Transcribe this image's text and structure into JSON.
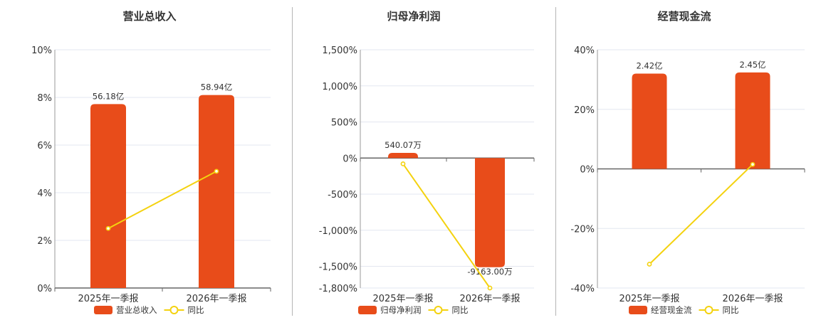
{
  "colors": {
    "bar": "#e84c1a",
    "line": "#f4d20f",
    "grid": "#e3e7f0",
    "axis": "#666666",
    "divider": "#b5b5b5"
  },
  "chart_data": [
    {
      "type": "bar",
      "title": "营业总收入",
      "categories": [
        "2025年一季报",
        "2026年一季报"
      ],
      "series": [
        {
          "name": "营业总收入",
          "type": "bar",
          "values": [
            56.18,
            58.94
          ],
          "value_labels": [
            "56.18亿",
            "58.94亿"
          ]
        },
        {
          "name": "同比",
          "type": "line",
          "values": [
            2.5,
            4.9
          ]
        }
      ],
      "ylim": [
        0,
        10
      ],
      "yticks": [
        0,
        2,
        4,
        6,
        8,
        10
      ],
      "ytick_labels": [
        "0%",
        "2%",
        "4%",
        "6%",
        "8%",
        "10%"
      ],
      "grid": true,
      "legend": "bottom"
    },
    {
      "type": "bar",
      "title": "归母净利润",
      "categories": [
        "2025年一季报",
        "2026年一季报"
      ],
      "series": [
        {
          "name": "归母净利润",
          "type": "bar",
          "values": [
            540.07,
            -9163.0
          ],
          "value_labels": [
            "540.07万",
            "-9163.00万"
          ]
        },
        {
          "name": "同比",
          "type": "line",
          "values": [
            -80,
            -1800
          ]
        }
      ],
      "ylim": [
        -1800,
        1500
      ],
      "yticks": [
        -1800,
        -1500,
        -1000,
        -500,
        0,
        500,
        1000,
        1500
      ],
      "ytick_labels": [
        "-1,800%",
        "-1,500%",
        "-1,000%",
        "-500%",
        "0%",
        "500%",
        "1,000%",
        "1,500%"
      ],
      "grid": true,
      "legend": "bottom"
    },
    {
      "type": "bar",
      "title": "经营现金流",
      "categories": [
        "2025年一季报",
        "2026年一季报"
      ],
      "series": [
        {
          "name": "经营现金流",
          "type": "bar",
          "values": [
            2.42,
            2.45
          ],
          "value_labels": [
            "2.42亿",
            "2.45亿"
          ]
        },
        {
          "name": "同比",
          "type": "line",
          "values": [
            -32,
            1.5
          ]
        }
      ],
      "ylim": [
        -40,
        40
      ],
      "yticks": [
        -40,
        -20,
        0,
        20,
        40
      ],
      "ytick_labels": [
        "-40%",
        "-20%",
        "0%",
        "20%",
        "40%"
      ],
      "grid": true,
      "legend": "bottom"
    }
  ]
}
